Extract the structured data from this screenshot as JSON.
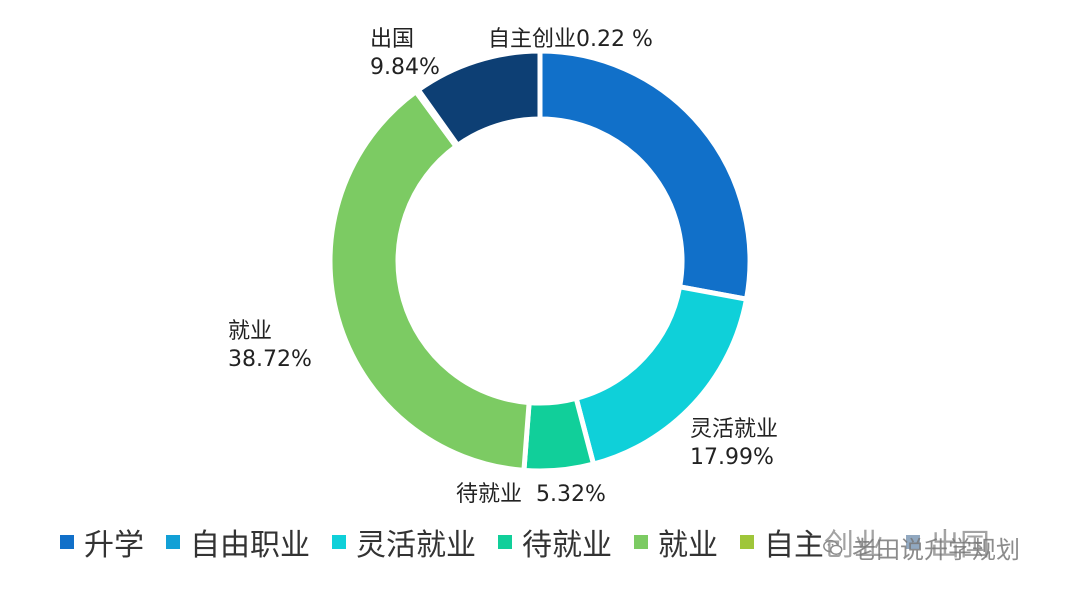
{
  "chart_data": {
    "type": "pie",
    "donut": true,
    "categories": [
      "升学",
      "自由职业",
      "灵活就业",
      "待就业",
      "就业",
      "自主创业",
      "出国"
    ],
    "values": [
      27.91,
      0.0,
      17.99,
      5.32,
      38.72,
      0.22,
      9.84
    ],
    "colors": [
      "#1170c9",
      "#12a0d6",
      "#0fd0d9",
      "#11cf9a",
      "#7ccb63",
      "#9fc63a",
      "#0d3f74"
    ],
    "data_labels": {
      "chuguo": {
        "name": "出国",
        "value": "9.84%"
      },
      "zizhu": {
        "name": "自主创业",
        "value": "0.22 %"
      },
      "jiuye": {
        "name": "就业",
        "value": "38.72%"
      },
      "linghuo": {
        "name": "灵活就业",
        "value": "17.99%"
      },
      "daijiuye": {
        "name": "待就业",
        "value": "5.32%"
      }
    },
    "legend_position": "bottom",
    "legend": [
      {
        "name": "升学",
        "color": "#1170c9"
      },
      {
        "name": "自由职业",
        "color": "#12a0d6"
      },
      {
        "name": "灵活就业",
        "color": "#0fd0d9"
      },
      {
        "name": "待就业",
        "color": "#11cf9a"
      },
      {
        "name": "就业",
        "color": "#7ccb63"
      },
      {
        "name": "自主创业",
        "color": "#9fc63a"
      },
      {
        "name": "出国",
        "color": "#0d3f74"
      }
    ]
  },
  "watermark": {
    "text": "老田说升学规划",
    "icon": "wechat-icon"
  }
}
